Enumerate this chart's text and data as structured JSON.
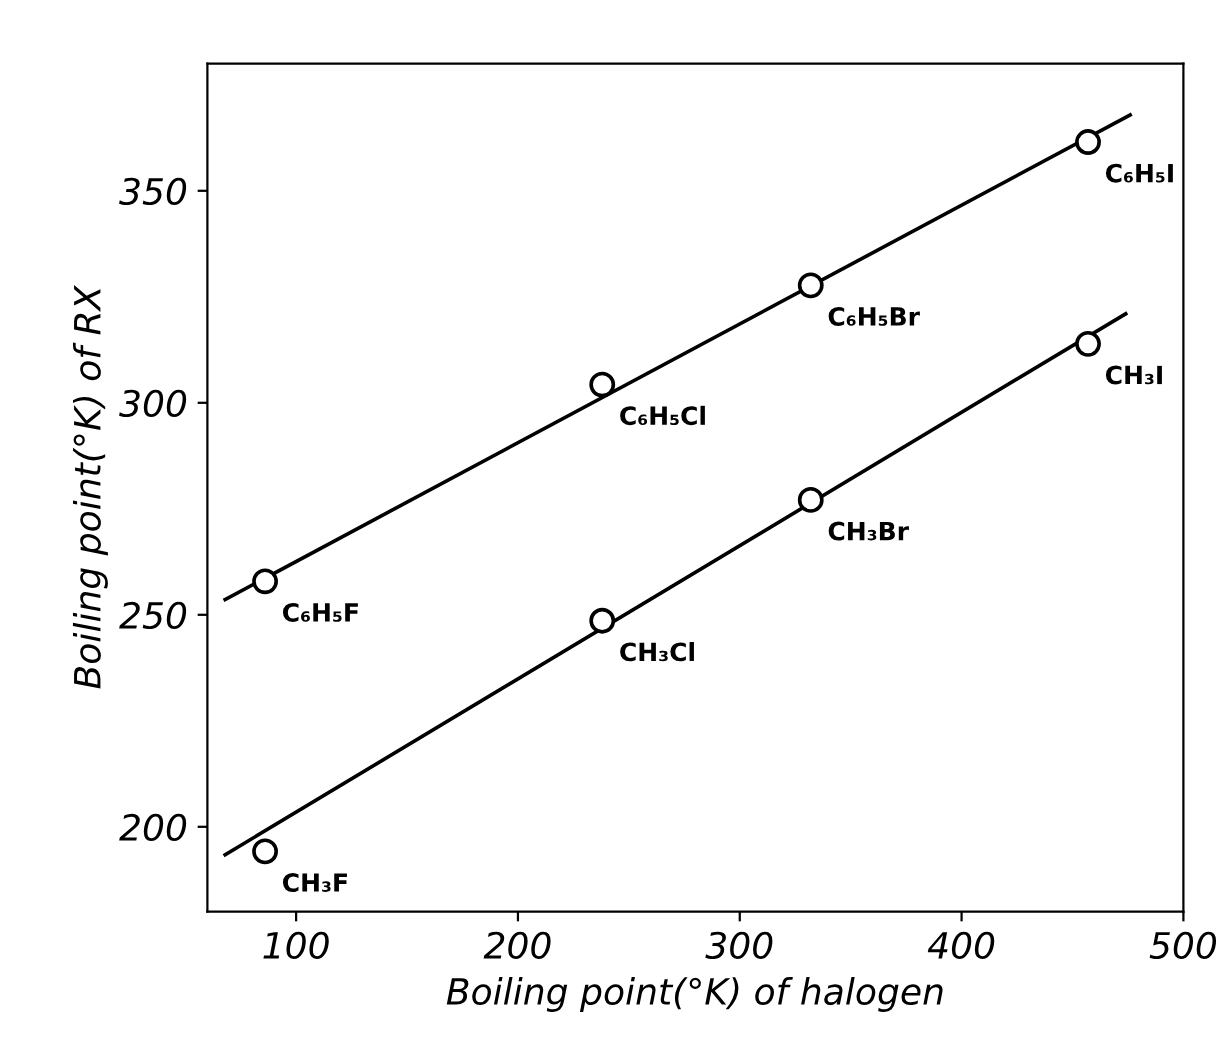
{
  "chart_data": {
    "type": "scatter",
    "xlabel": "Boiling point(°K) of halogen",
    "ylabel": "Boiling point(°K) of RX",
    "xlim": [
      60,
      500
    ],
    "ylim": [
      180,
      380
    ],
    "xticks": [
      100,
      200,
      300,
      400,
      500
    ],
    "yticks": [
      200,
      250,
      300,
      350
    ],
    "grid": false,
    "series": [
      {
        "marker": "circle",
        "color": "#000000",
        "x": [
          86,
          238,
          332,
          457
        ],
        "values": [
          257.9,
          304.3,
          327.7,
          361.5
        ]
      },
      {
        "marker": "circle",
        "color": "#000000",
        "x": [
          86,
          238,
          332,
          457
        ],
        "values": [
          194.2,
          248.6,
          277.1,
          313.9
        ]
      },
      {
        "type": "line",
        "color": "#000000",
        "x": [
          68,
          476
        ],
        "values": [
          253.6,
          367.9
        ]
      },
      {
        "type": "line",
        "color": "#000000",
        "x": [
          68,
          474
        ],
        "values": [
          193.4,
          321
        ]
      }
    ],
    "annotations": [
      {
        "text": "C₆H₅F",
        "x": 86,
        "y": 257.9
      },
      {
        "text": "C₆H₅Cl",
        "x": 238,
        "y": 304.3
      },
      {
        "text": "C₆H₅Br",
        "x": 332,
        "y": 327.7
      },
      {
        "text": "C₆H₅I",
        "x": 457,
        "y": 361.5
      },
      {
        "text": "CH₃F",
        "x": 86,
        "y": 194.2
      },
      {
        "text": "CH₃Cl",
        "x": 238,
        "y": 248.6
      },
      {
        "text": "CH₃Br",
        "x": 332,
        "y": 277.1
      },
      {
        "text": "CH₃I",
        "x": 457,
        "y": 313.9
      }
    ]
  }
}
